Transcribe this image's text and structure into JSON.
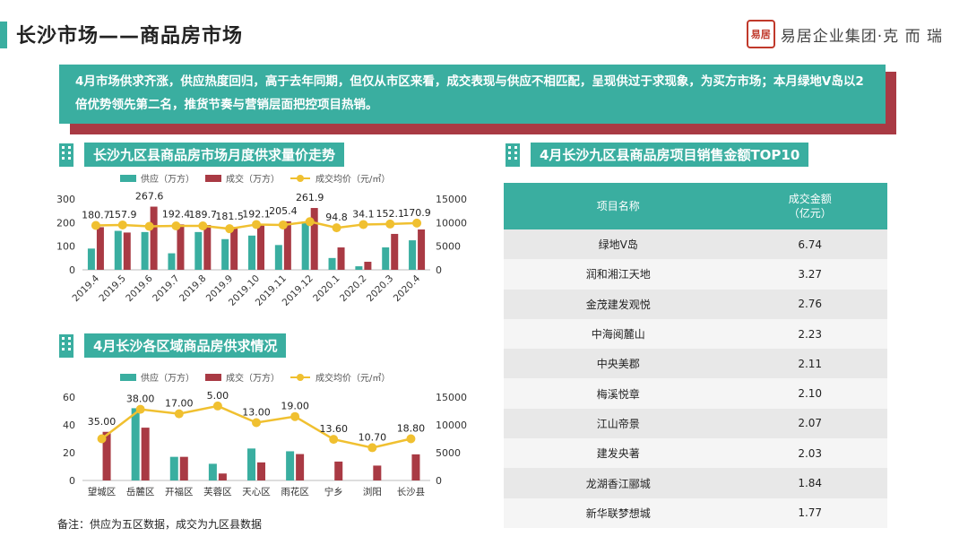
{
  "header": {
    "title": "长沙市场——商品房市场",
    "logo_seal": "易居",
    "logo_text": "易居企业集团·克 而 瑞"
  },
  "summary": {
    "text": "4月市场供求齐涨，供应热度回归，高于去年同期，但仅从市区来看，成交表现与供应不相匹配，呈现供过于求现象，为买方市场；本月绿地V岛以2倍优势领先第二名，推货节奏与营销层面把控项目热销。"
  },
  "colors": {
    "supply": "#3aaea0",
    "deal": "#a93a44",
    "price": "#f0c030"
  },
  "icons": {
    "section_icon": "building-icon"
  },
  "sections": {
    "monthly": "长沙九区县商品房市场月度供求量价走势",
    "regional": "4月长沙各区域商品房供求情况",
    "top10": "4月长沙九区县商品房项目销售金额TOP10"
  },
  "chart_data": [
    {
      "type": "bar",
      "title": "长沙九区县商品房市场月度供求量价走势",
      "categories": [
        "2019.4",
        "2019.5",
        "2019.6",
        "2019.7",
        "2019.8",
        "2019.9",
        "2019.10",
        "2019.11",
        "2019.12",
        "2020.1",
        "2020.2",
        "2020.3",
        "2020.4"
      ],
      "series": [
        {
          "name": "供应（万方）",
          "type": "bar",
          "axis": "left",
          "values": [
            90,
            165,
            160,
            70,
            160,
            130,
            145,
            105,
            205,
            50,
            15,
            95,
            125
          ]
        },
        {
          "name": "成交（万方）",
          "type": "bar",
          "axis": "left",
          "values": [
            180.7,
            157.9,
            267.6,
            192.4,
            189.7,
            181.5,
            192.1,
            205.4,
            261.9,
            94.8,
            34.1,
            152.1,
            170.9
          ]
        },
        {
          "name": "成交均价（元/㎡）",
          "type": "line",
          "axis": "right",
          "values": [
            9400,
            9500,
            9200,
            9300,
            9300,
            8700,
            9600,
            9500,
            10200,
            8900,
            9600,
            9700,
            9900
          ]
        }
      ],
      "data_labels": [
        "180.7",
        "157.9",
        "267.6",
        "192.4",
        "189.7",
        "181.5",
        "192.1",
        "205.4",
        "261.9",
        "94.8",
        "34.1",
        "152.1",
        "170.9"
      ],
      "left_ticks": [
        "0",
        "100",
        "200",
        "300"
      ],
      "right_ticks": [
        "0",
        "5000",
        "10000",
        "15000"
      ],
      "ylim": [
        0,
        300
      ],
      "y2lim": [
        0,
        15000
      ],
      "legend": "top"
    },
    {
      "type": "bar",
      "title": "4月长沙各区域商品房供求情况",
      "categories": [
        "望城区",
        "岳麓区",
        "开福区",
        "芙蓉区",
        "天心区",
        "雨花区",
        "宁乡",
        "浏阳",
        "长沙县"
      ],
      "series": [
        {
          "name": "供应（万方）",
          "type": "bar",
          "axis": "left",
          "values": [
            0,
            52,
            17,
            12,
            23,
            21,
            0,
            0,
            0
          ]
        },
        {
          "name": "成交（万方）",
          "type": "bar",
          "axis": "left",
          "values": [
            35.0,
            38.0,
            17.0,
            5.0,
            13.0,
            19.0,
            13.6,
            10.7,
            18.8
          ]
        },
        {
          "name": "成交均价（元/㎡）",
          "type": "line",
          "axis": "right",
          "values": [
            7500,
            12800,
            12000,
            13400,
            10400,
            11500,
            7400,
            5900,
            7500
          ]
        }
      ],
      "data_labels": [
        "35.00",
        "38.00",
        "17.00",
        "5.00",
        "13.00",
        "19.00",
        "13.60",
        "10.70",
        "18.80"
      ],
      "left_ticks": [
        "0",
        "20",
        "40",
        "60"
      ],
      "right_ticks": [
        "0",
        "5000",
        "10000",
        "15000"
      ],
      "ylim": [
        0,
        60
      ],
      "y2lim": [
        0,
        15000
      ],
      "legend": "top"
    },
    {
      "type": "table",
      "title": "4月长沙九区县商品房项目销售金额TOP10",
      "columns": [
        "项目名称",
        "成交金额\n（亿元）"
      ],
      "rows": [
        [
          "绿地V岛",
          "6.74"
        ],
        [
          "润和湘江天地",
          "3.27"
        ],
        [
          "金茂建发观悦",
          "2.76"
        ],
        [
          "中海阅麓山",
          "2.23"
        ],
        [
          "中央美郡",
          "2.11"
        ],
        [
          "梅溪悦章",
          "2.10"
        ],
        [
          "江山帝景",
          "2.07"
        ],
        [
          "建发央著",
          "2.03"
        ],
        [
          "龙湖香江郦城",
          "1.84"
        ],
        [
          "新华联梦想城",
          "1.77"
        ]
      ]
    }
  ],
  "footnote": "备注：供应为五区数据，成交为九区县数据"
}
